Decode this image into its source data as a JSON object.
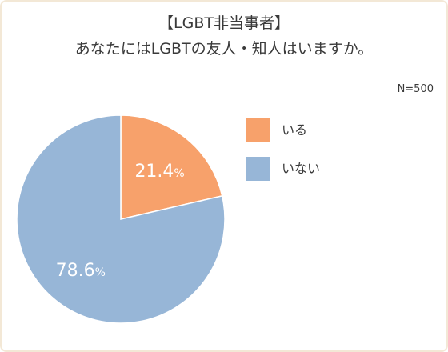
{
  "title": {
    "line1": "【LGBT非当事者】",
    "line2": "あなたにはLGBTの友人・知人はいますか。"
  },
  "sample_size": "N=500",
  "chart_data": {
    "type": "pie",
    "categories": [
      "いる",
      "いない"
    ],
    "values": [
      21.4,
      78.6
    ],
    "unit": "%",
    "colors": [
      "#f7a16b",
      "#97b6d7"
    ],
    "legend": "right",
    "start_angle_deg": 0,
    "direction": "clockwise"
  },
  "labels": [
    {
      "value": "21.4",
      "unit": "%"
    },
    {
      "value": "78.6",
      "unit": "%"
    }
  ]
}
